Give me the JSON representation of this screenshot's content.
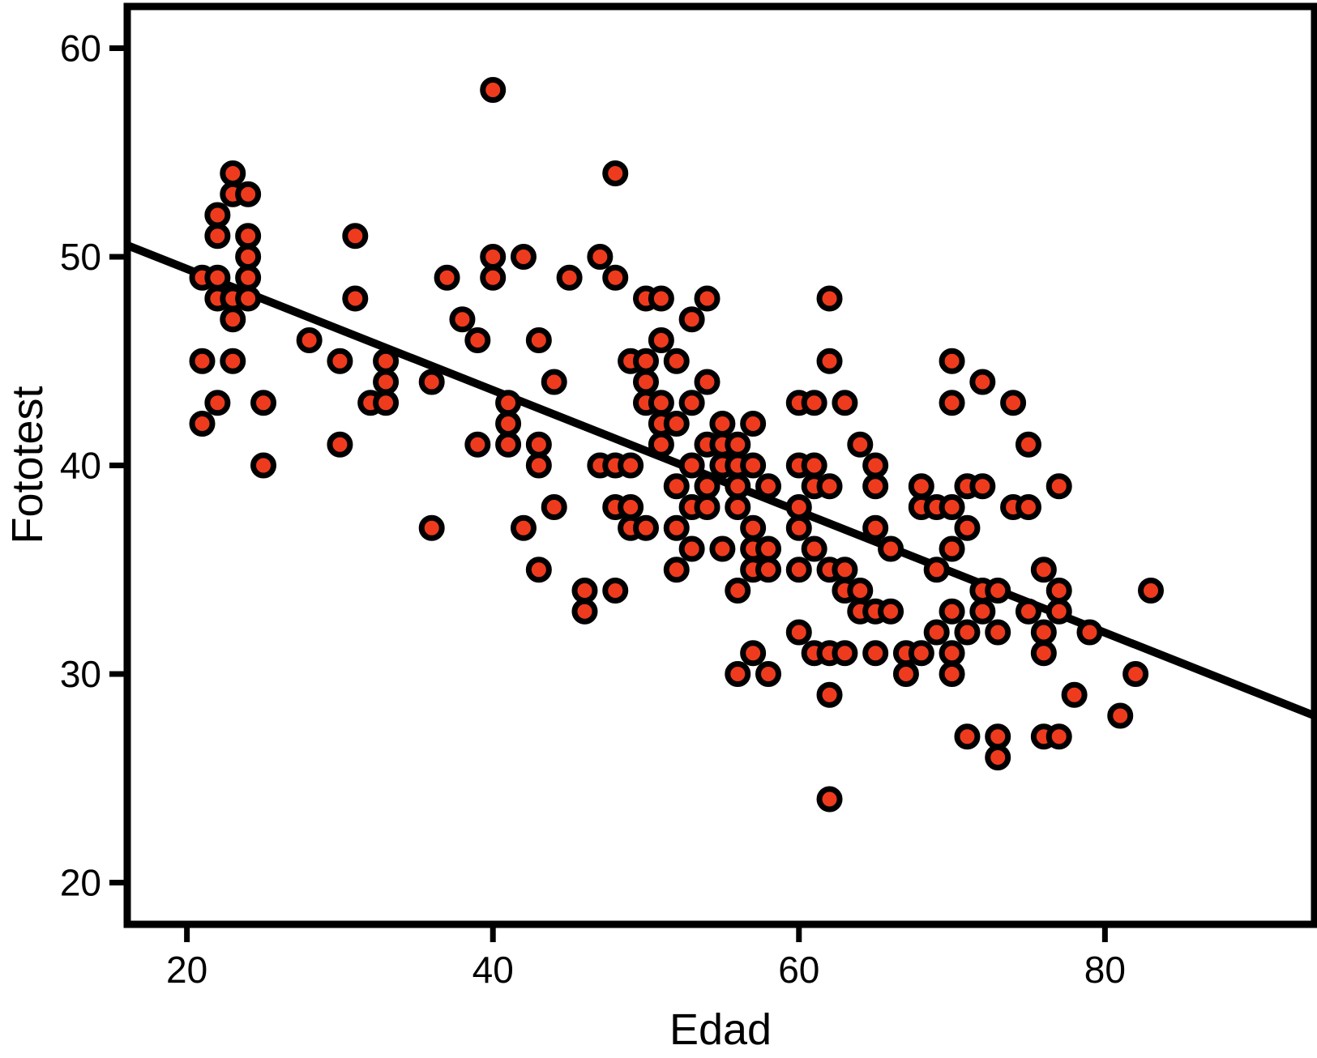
{
  "figure": {
    "background": "#ffffff",
    "border_color": "#000000"
  },
  "chart_data": {
    "type": "scatter",
    "title": "",
    "xlabel": "Edad",
    "ylabel": "Fototest",
    "xlim": [
      16.1,
      93.7
    ],
    "ylim": [
      18,
      62
    ],
    "xticks": [
      20,
      40,
      60,
      80
    ],
    "yticks": [
      20,
      30,
      40,
      50,
      60
    ],
    "grid": false,
    "legend_position": "none",
    "point_color": "#ee3b1e",
    "point_outline_color": "#000000",
    "trend_line": {
      "color": "#000000",
      "slope": -0.2906,
      "intercept": 55.23,
      "x_start": 16.1,
      "x_end": 93.7
    },
    "points": [
      [
        40,
        58
      ],
      [
        23,
        54
      ],
      [
        48,
        54
      ],
      [
        23,
        53
      ],
      [
        24,
        53
      ],
      [
        22,
        52
      ],
      [
        22,
        51
      ],
      [
        24,
        51
      ],
      [
        31,
        51
      ],
      [
        24,
        50
      ],
      [
        40,
        50
      ],
      [
        42,
        50
      ],
      [
        47,
        50
      ],
      [
        21,
        49
      ],
      [
        22,
        49
      ],
      [
        24,
        49
      ],
      [
        37,
        49
      ],
      [
        40,
        49
      ],
      [
        45,
        49
      ],
      [
        48,
        49
      ],
      [
        22,
        48
      ],
      [
        23,
        48
      ],
      [
        24,
        48
      ],
      [
        31,
        48
      ],
      [
        50,
        48
      ],
      [
        51,
        48
      ],
      [
        54,
        48
      ],
      [
        62,
        48
      ],
      [
        23,
        47
      ],
      [
        38,
        47
      ],
      [
        53,
        47
      ],
      [
        28,
        46
      ],
      [
        39,
        46
      ],
      [
        43,
        46
      ],
      [
        51,
        46
      ],
      [
        21,
        45
      ],
      [
        23,
        45
      ],
      [
        30,
        45
      ],
      [
        33,
        45
      ],
      [
        49,
        45
      ],
      [
        50,
        45
      ],
      [
        52,
        45
      ],
      [
        62,
        45
      ],
      [
        70,
        45
      ],
      [
        33,
        44
      ],
      [
        36,
        44
      ],
      [
        44,
        44
      ],
      [
        50,
        44
      ],
      [
        54,
        44
      ],
      [
        72,
        44
      ],
      [
        22,
        43
      ],
      [
        25,
        43
      ],
      [
        32,
        43
      ],
      [
        33,
        43
      ],
      [
        41,
        43
      ],
      [
        50,
        43
      ],
      [
        51,
        43
      ],
      [
        53,
        43
      ],
      [
        60,
        43
      ],
      [
        61,
        43
      ],
      [
        63,
        43
      ],
      [
        70,
        43
      ],
      [
        74,
        43
      ],
      [
        21,
        42
      ],
      [
        41,
        42
      ],
      [
        51,
        42
      ],
      [
        52,
        42
      ],
      [
        55,
        42
      ],
      [
        57,
        42
      ],
      [
        30,
        41
      ],
      [
        39,
        41
      ],
      [
        41,
        41
      ],
      [
        43,
        41
      ],
      [
        51,
        41
      ],
      [
        54,
        41
      ],
      [
        55,
        41
      ],
      [
        56,
        41
      ],
      [
        64,
        41
      ],
      [
        75,
        41
      ],
      [
        25,
        40
      ],
      [
        43,
        40
      ],
      [
        47,
        40
      ],
      [
        48,
        40
      ],
      [
        49,
        40
      ],
      [
        53,
        40
      ],
      [
        55,
        40
      ],
      [
        56,
        40
      ],
      [
        57,
        40
      ],
      [
        60,
        40
      ],
      [
        61,
        40
      ],
      [
        65,
        40
      ],
      [
        52,
        39
      ],
      [
        54,
        39
      ],
      [
        56,
        39
      ],
      [
        58,
        39
      ],
      [
        61,
        39
      ],
      [
        62,
        39
      ],
      [
        65,
        39
      ],
      [
        68,
        39
      ],
      [
        71,
        39
      ],
      [
        72,
        39
      ],
      [
        77,
        39
      ],
      [
        44,
        38
      ],
      [
        48,
        38
      ],
      [
        49,
        38
      ],
      [
        53,
        38
      ],
      [
        54,
        38
      ],
      [
        56,
        38
      ],
      [
        60,
        38
      ],
      [
        68,
        38
      ],
      [
        69,
        38
      ],
      [
        70,
        38
      ],
      [
        74,
        38
      ],
      [
        75,
        38
      ],
      [
        36,
        37
      ],
      [
        42,
        37
      ],
      [
        49,
        37
      ],
      [
        50,
        37
      ],
      [
        52,
        37
      ],
      [
        57,
        37
      ],
      [
        60,
        37
      ],
      [
        65,
        37
      ],
      [
        71,
        37
      ],
      [
        53,
        36
      ],
      [
        55,
        36
      ],
      [
        57,
        36
      ],
      [
        58,
        36
      ],
      [
        61,
        36
      ],
      [
        66,
        36
      ],
      [
        70,
        36
      ],
      [
        43,
        35
      ],
      [
        52,
        35
      ],
      [
        57,
        35
      ],
      [
        58,
        35
      ],
      [
        60,
        35
      ],
      [
        62,
        35
      ],
      [
        63,
        35
      ],
      [
        69,
        35
      ],
      [
        76,
        35
      ],
      [
        46,
        34
      ],
      [
        48,
        34
      ],
      [
        56,
        34
      ],
      [
        63,
        34
      ],
      [
        64,
        34
      ],
      [
        72,
        34
      ],
      [
        73,
        34
      ],
      [
        77,
        34
      ],
      [
        83,
        34
      ],
      [
        46,
        33
      ],
      [
        64,
        33
      ],
      [
        65,
        33
      ],
      [
        66,
        33
      ],
      [
        70,
        33
      ],
      [
        72,
        33
      ],
      [
        75,
        33
      ],
      [
        77,
        33
      ],
      [
        60,
        32
      ],
      [
        69,
        32
      ],
      [
        71,
        32
      ],
      [
        73,
        32
      ],
      [
        76,
        32
      ],
      [
        79,
        32
      ],
      [
        57,
        31
      ],
      [
        61,
        31
      ],
      [
        62,
        31
      ],
      [
        63,
        31
      ],
      [
        65,
        31
      ],
      [
        67,
        31
      ],
      [
        68,
        31
      ],
      [
        70,
        31
      ],
      [
        76,
        31
      ],
      [
        56,
        30
      ],
      [
        58,
        30
      ],
      [
        67,
        30
      ],
      [
        70,
        30
      ],
      [
        82,
        30
      ],
      [
        62,
        29
      ],
      [
        78,
        29
      ],
      [
        81,
        28
      ],
      [
        71,
        27
      ],
      [
        73,
        27
      ],
      [
        76,
        27
      ],
      [
        77,
        27
      ],
      [
        73,
        26
      ],
      [
        62,
        24
      ]
    ]
  }
}
